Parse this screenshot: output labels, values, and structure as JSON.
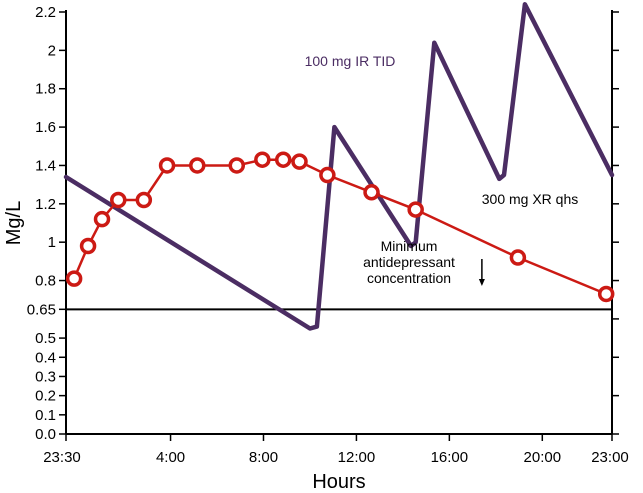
{
  "chart_data": {
    "type": "line",
    "title": "",
    "xlabel": "Hours",
    "ylabel": "Mg/L",
    "xlim": [
      0,
      23.5
    ],
    "ylim": [
      0,
      2.2
    ],
    "x_ticks": [
      {
        "value": 0,
        "label": "23:30"
      },
      {
        "value": 4.5,
        "label": "4:00"
      },
      {
        "value": 8.5,
        "label": "8:00"
      },
      {
        "value": 12.5,
        "label": "12:00"
      },
      {
        "value": 16.5,
        "label": "16:00"
      },
      {
        "value": 20.5,
        "label": "20:00"
      },
      {
        "value": 23.5,
        "label": "23:00"
      }
    ],
    "y_ticks": [
      {
        "value": 0,
        "label": "0.0"
      },
      {
        "value": 0.1,
        "label": "0.1"
      },
      {
        "value": 0.2,
        "label": "0.2"
      },
      {
        "value": 0.3,
        "label": "0.3"
      },
      {
        "value": 0.4,
        "label": "0.4"
      },
      {
        "value": 0.5,
        "label": "0.5"
      },
      {
        "value": 0.65,
        "label": "0.65"
      },
      {
        "value": 0.8,
        "label": "0.8"
      },
      {
        "value": 1,
        "label": "1"
      },
      {
        "value": 1.2,
        "label": "1.2"
      },
      {
        "value": 1.4,
        "label": "1.4"
      },
      {
        "value": 1.6,
        "label": "1.6"
      },
      {
        "value": 1.8,
        "label": "1.8"
      },
      {
        "value": 2,
        "label": "2"
      },
      {
        "value": 2.2,
        "label": "2.2"
      }
    ],
    "threshold": {
      "value": 0.65,
      "label_lines": [
        "Minimum",
        "antidepressant",
        "concentration"
      ],
      "arrow_x": 17.9
    },
    "series": [
      {
        "name": "100 mg IR TID",
        "color": "#4b2d63",
        "marker": "none",
        "points": [
          [
            0,
            1.34
          ],
          [
            10.5,
            0.55
          ],
          [
            10.8,
            0.56
          ],
          [
            11.55,
            1.6
          ],
          [
            14.85,
            0.98
          ],
          [
            15.05,
            1.0
          ],
          [
            15.85,
            2.04
          ],
          [
            18.65,
            1.33
          ],
          [
            18.85,
            1.35
          ],
          [
            19.75,
            2.24
          ],
          [
            23.5,
            1.35
          ]
        ],
        "label_x": 17.5,
        "label_y": 2.0
      },
      {
        "name": "300 mg XR qhs",
        "color": "#cc1a14",
        "marker": "circle",
        "points": [
          [
            0.35,
            0.81
          ],
          [
            0.95,
            0.98
          ],
          [
            1.55,
            1.12
          ],
          [
            2.25,
            1.22
          ],
          [
            3.35,
            1.22
          ],
          [
            4.35,
            1.4
          ],
          [
            5.65,
            1.4
          ],
          [
            7.35,
            1.4
          ],
          [
            8.45,
            1.43
          ],
          [
            9.35,
            1.43
          ],
          [
            10.05,
            1.42
          ],
          [
            11.25,
            1.35
          ],
          [
            13.15,
            1.26
          ],
          [
            15.05,
            1.17
          ],
          [
            19.45,
            0.92
          ],
          [
            23.25,
            0.73
          ]
        ],
        "label_x": 21.5,
        "label_y": 1.18
      }
    ]
  }
}
